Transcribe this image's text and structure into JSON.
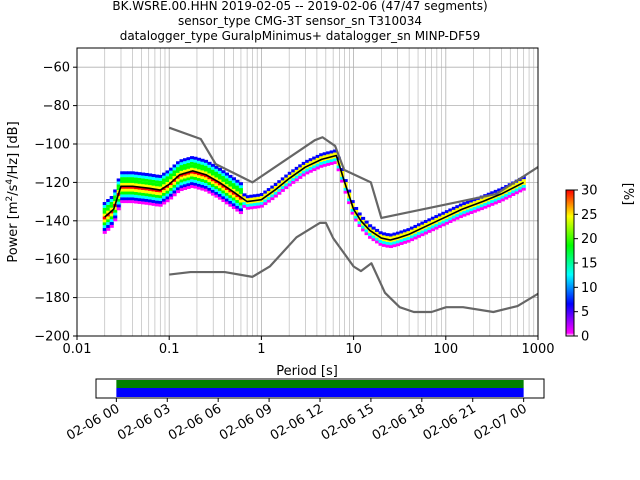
{
  "header": {
    "title_lines": [
      "BK.WSRE.00.HHN   2019-02-05 -- 2019-02-06  (47/47 segments)",
      "sensor_type CMG-3T sensor_sn T310034",
      "datalogger_type GuralpMinimus+ datalogger_sn MINP-DF59"
    ]
  },
  "chart_data": [
    {
      "type": "heatmap",
      "subtype": "probabilistic-power-spectral-density",
      "xlabel": "Period [s]",
      "ylabel_parts": [
        "Power [m",
        "2",
        "/s",
        "4",
        "/Hz] [dB]"
      ],
      "x_scale": "log",
      "xlim": [
        0.01,
        1000
      ],
      "ylim": [
        -200,
        -50
      ],
      "x_ticks": [
        0.01,
        0.1,
        1,
        10,
        100,
        1000
      ],
      "x_tick_labels": [
        "0.01",
        "0.1",
        "1",
        "10",
        "100",
        "1000"
      ],
      "y_ticks": [
        -200,
        -180,
        -160,
        -140,
        -120,
        -100,
        -80,
        -60
      ],
      "y_tick_labels": [
        "−200",
        "−180",
        "−160",
        "−140",
        "−120",
        "−100",
        "−80",
        "−60"
      ],
      "grid": true,
      "noise_models": {
        "color": "#666666",
        "high_noise_model": {
          "x": [
            0.1,
            0.22,
            0.32,
            0.8,
            3.8,
            4.6,
            6.3,
            7.9,
            15.4,
            20,
            354.8,
            1000
          ],
          "y": [
            -91.5,
            -97.4,
            -110.5,
            -120,
            -98,
            -96.5,
            -101,
            -113.5,
            -120,
            -138.5,
            -126,
            -112
          ]
        },
        "low_noise_model": {
          "x": [
            0.1,
            0.17,
            0.4,
            0.8,
            1.24,
            2.4,
            4.3,
            5.0,
            6.0,
            10.0,
            12.0,
            15.6,
            21.9,
            31.6,
            45.0,
            70.0,
            101.0,
            154.0,
            328.0,
            600.0,
            1000.0
          ],
          "y": [
            -168,
            -166.7,
            -166.7,
            -169.2,
            -163.7,
            -148.6,
            -141.1,
            -141.1,
            -149,
            -163.8,
            -166.2,
            -162.1,
            -177.5,
            -185,
            -187.5,
            -187.5,
            -185,
            -185,
            -187.5,
            -184.4,
            -178
          ]
        }
      },
      "mean_curve": {
        "color": "#000000",
        "x": [
          0.02,
          0.025,
          0.03,
          0.04,
          0.06,
          0.08,
          0.1,
          0.13,
          0.18,
          0.25,
          0.35,
          0.5,
          0.7,
          1.0,
          1.4,
          2.0,
          3.0,
          4.5,
          6.5,
          8.0,
          10.0,
          12.0,
          15.0,
          20.0,
          25.0,
          30.0,
          40.0,
          60.0,
          100.0,
          150.0,
          250.0,
          400.0,
          700.0
        ],
        "y": [
          -138,
          -134,
          -122,
          -122,
          -123,
          -124,
          -121,
          -116,
          -114,
          -116,
          -120,
          -125,
          -130,
          -129,
          -124,
          -118,
          -112,
          -108,
          -106,
          -120,
          -134,
          -140,
          -145,
          -149,
          -150,
          -149,
          -147,
          -143,
          -138,
          -134,
          -130,
          -126,
          -120
        ]
      },
      "density_colorbar": {
        "label": "[%]",
        "colors": [
          "#ff00ff",
          "#0000ff",
          "#00ffff",
          "#00ff00",
          "#ffff00",
          "#ff0000"
        ],
        "min": 0,
        "max": 30,
        "ticks": [
          0,
          5,
          10,
          15,
          20,
          25,
          30
        ],
        "tick_labels": [
          "0",
          "5",
          "10",
          "15",
          "20",
          "25",
          "30"
        ]
      }
    },
    {
      "type": "bar",
      "subtype": "data-coverage-timeline",
      "x_tick_labels": [
        "02-06 00",
        "02-06 03",
        "02-06 06",
        "02-06 09",
        "02-06 12",
        "02-06 15",
        "02-06 18",
        "02-06 21",
        "02-07 00"
      ],
      "x_ticks_hours": [
        0,
        3,
        6,
        9,
        12,
        15,
        18,
        21,
        24
      ],
      "xlim_hours": [
        -1.2,
        25.2
      ],
      "coverage_start_hours": 0,
      "coverage_end_hours": 24,
      "psd_coverage_color": "#008000",
      "data_coverage_color": "#0000ff"
    }
  ]
}
